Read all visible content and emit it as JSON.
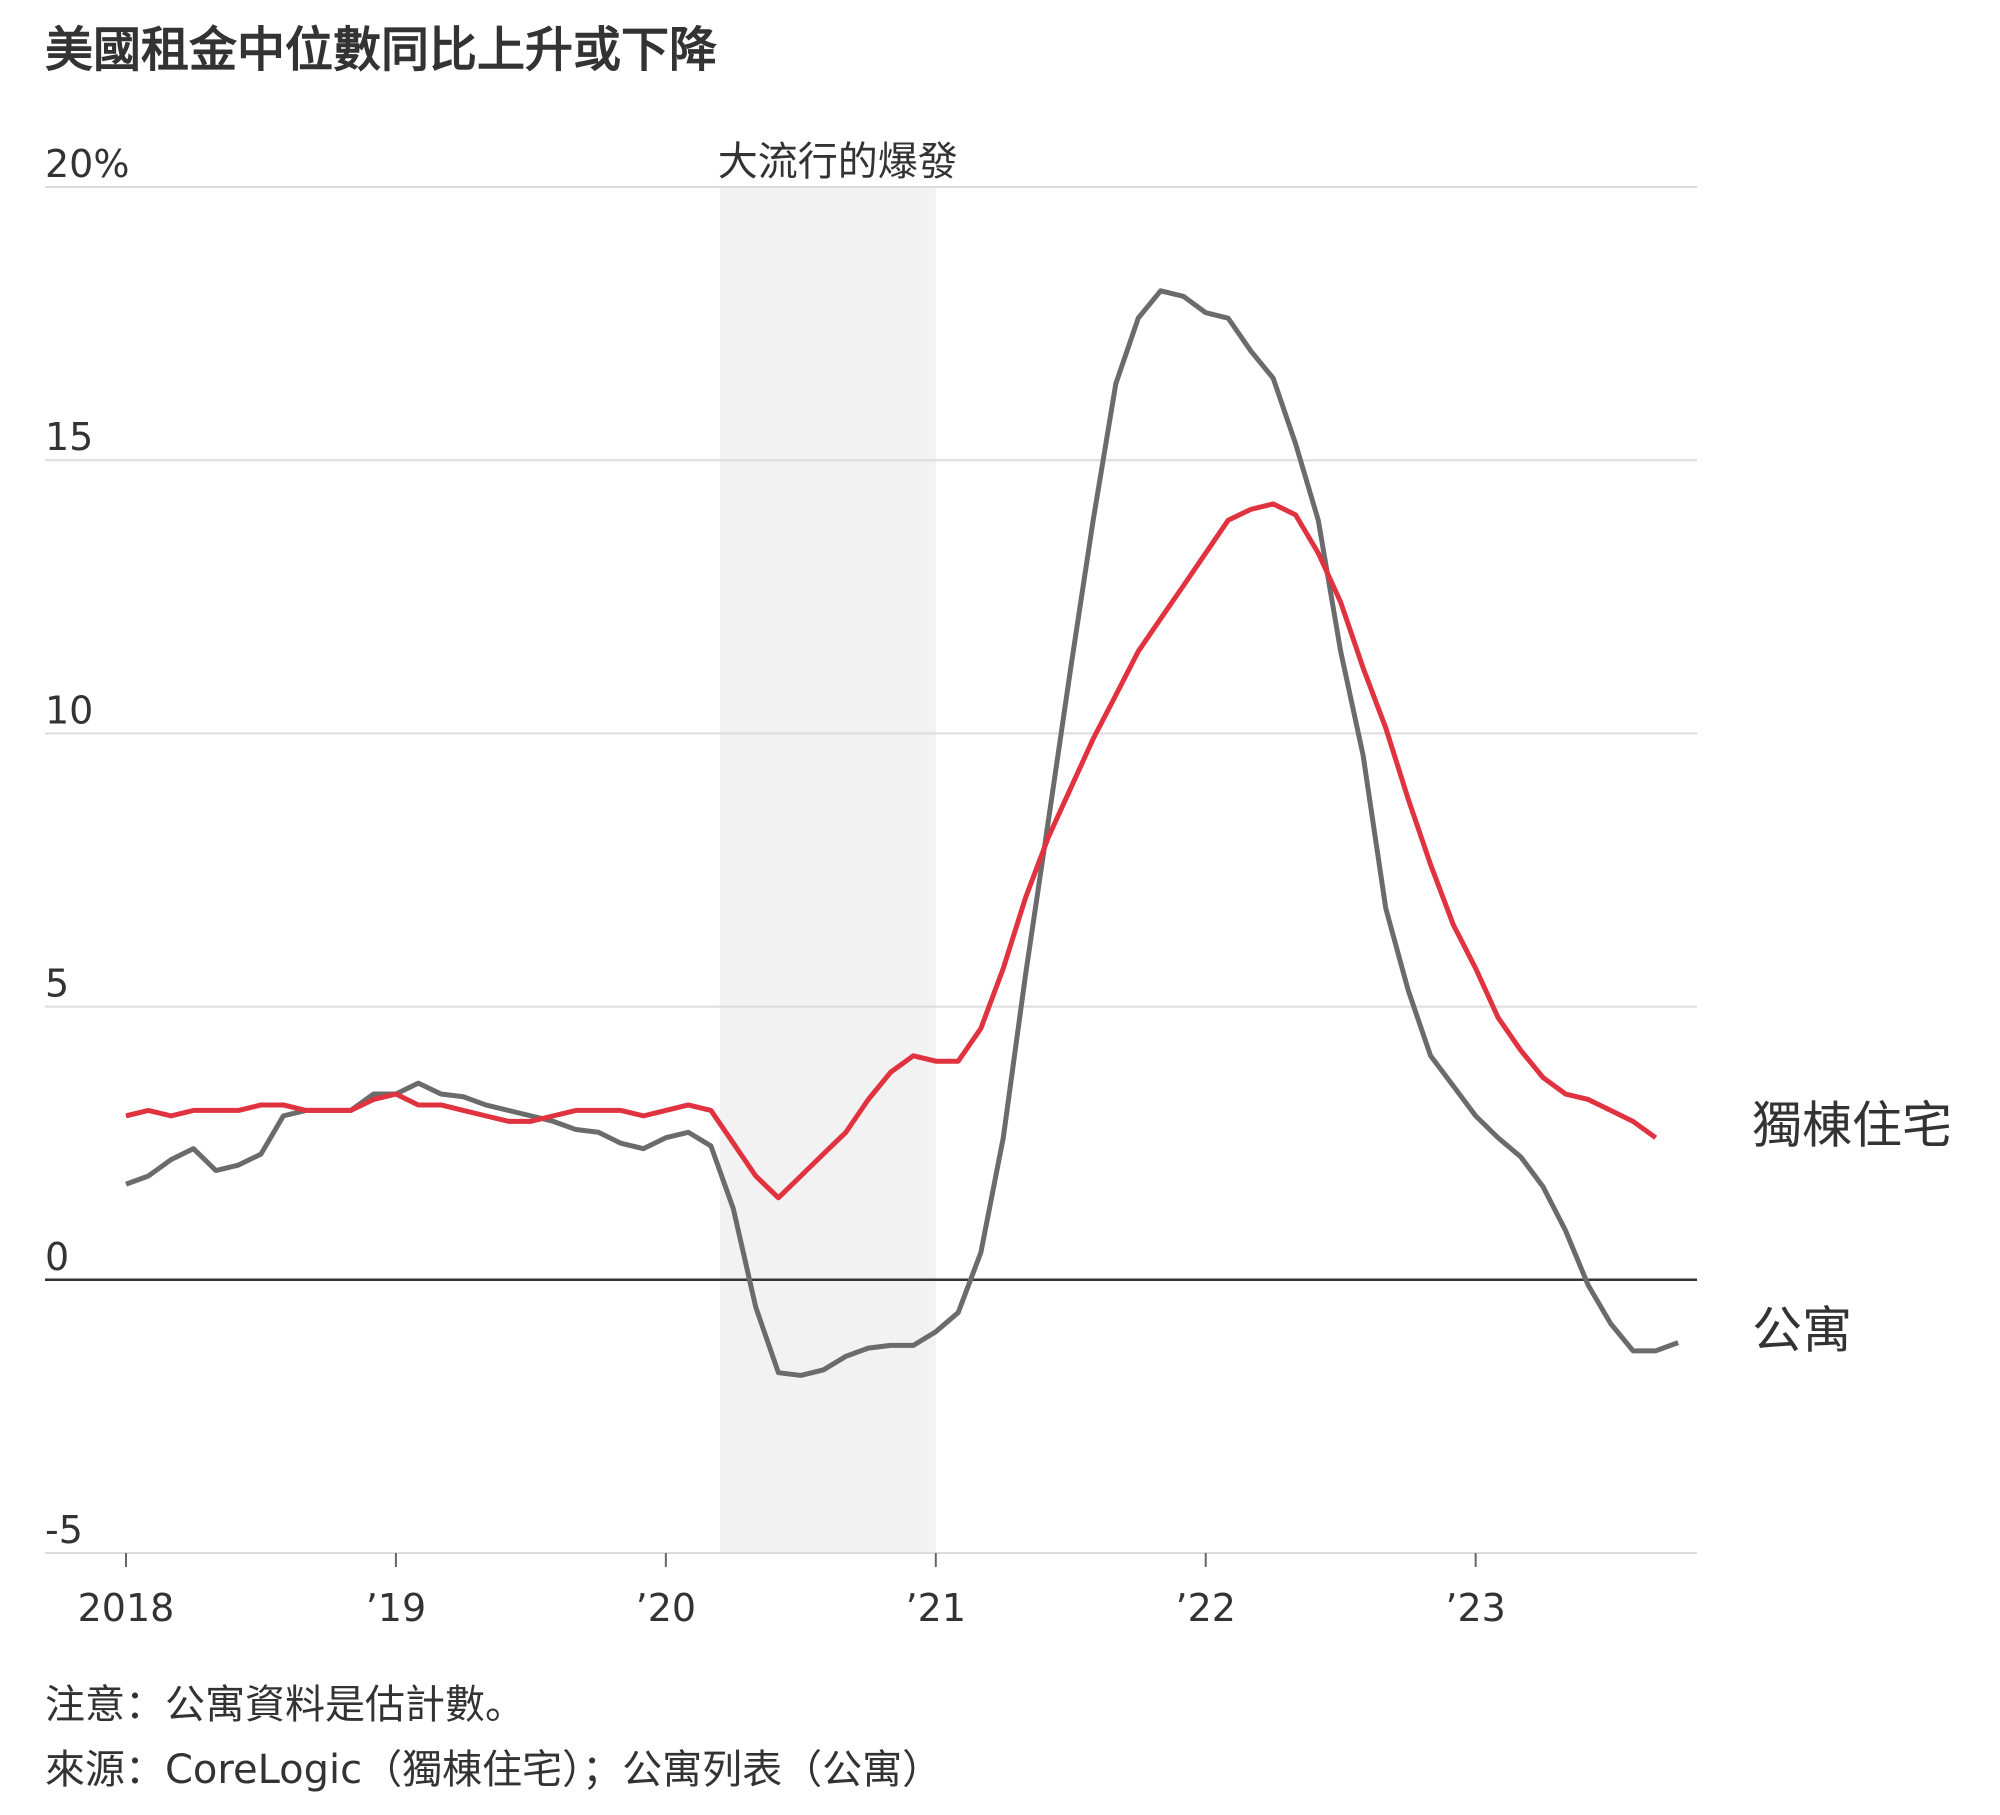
{
  "chart_data": {
    "type": "line",
    "title": "美國租金中位數同比上升或下降",
    "notes": [
      "注意：公寓資料是估計數。",
      "來源：CoreLogic（獨棟住宅）；公寓列表（公寓）"
    ],
    "x": [
      2018,
      2018.083,
      2018.167,
      2018.25,
      2018.333,
      2018.417,
      2018.5,
      2018.583,
      2018.667,
      2018.75,
      2018.833,
      2018.917,
      2019,
      2019.083,
      2019.167,
      2019.25,
      2019.333,
      2019.417,
      2019.5,
      2019.583,
      2019.667,
      2019.75,
      2019.833,
      2019.917,
      2020,
      2020.083,
      2020.167,
      2020.25,
      2020.333,
      2020.417,
      2020.5,
      2020.583,
      2020.667,
      2020.75,
      2020.833,
      2020.917,
      2021,
      2021.083,
      2021.167,
      2021.25,
      2021.333,
      2021.417,
      2021.5,
      2021.583,
      2021.667,
      2021.75,
      2021.833,
      2021.917,
      2022,
      2022.083,
      2022.167,
      2022.25,
      2022.333,
      2022.417,
      2022.5,
      2022.583,
      2022.667,
      2022.75,
      2022.833,
      2022.917,
      2023,
      2023.083,
      2023.167,
      2023.25,
      2023.333,
      2023.417,
      2023.5,
      2023.583,
      2023.667,
      2023.75
    ],
    "series": [
      {
        "name": "獨棟住宅",
        "color": "#e0323f",
        "values": [
          3.0,
          3.1,
          3.0,
          3.1,
          3.1,
          3.1,
          3.2,
          3.2,
          3.1,
          3.1,
          3.1,
          3.3,
          3.4,
          3.2,
          3.2,
          3.1,
          3.0,
          2.9,
          2.9,
          3.0,
          3.1,
          3.1,
          3.1,
          3.0,
          3.1,
          3.2,
          3.1,
          2.5,
          1.9,
          1.5,
          1.9,
          2.3,
          2.7,
          3.3,
          3.8,
          4.1,
          4.0,
          4.0,
          4.6,
          5.7,
          7.0,
          8.1,
          9.0,
          9.9,
          10.7,
          11.5,
          12.1,
          12.7,
          13.3,
          13.9,
          14.1,
          14.2,
          14.0,
          13.3,
          12.4,
          11.2,
          10.1,
          8.8,
          7.6,
          6.5,
          5.7,
          4.8,
          4.2,
          3.7,
          3.4,
          3.3,
          3.1,
          2.9,
          2.6,
          null
        ]
      },
      {
        "name": "公寓",
        "color": "#6b6b6b",
        "values": [
          1.75,
          1.9,
          2.2,
          2.4,
          2.0,
          2.1,
          2.3,
          3.0,
          3.1,
          3.1,
          3.1,
          3.4,
          3.4,
          3.6,
          3.4,
          3.35,
          3.2,
          3.1,
          3.0,
          2.9,
          2.75,
          2.7,
          2.5,
          2.4,
          2.6,
          2.7,
          2.45,
          1.3,
          -0.5,
          -1.7,
          -1.75,
          -1.65,
          -1.4,
          -1.25,
          -1.2,
          -1.2,
          -0.95,
          -0.6,
          0.5,
          2.6,
          5.6,
          8.4,
          11.2,
          13.9,
          16.4,
          17.6,
          18.1,
          18.0,
          17.7,
          17.6,
          17.0,
          16.5,
          15.3,
          13.9,
          11.5,
          9.6,
          6.8,
          5.3,
          4.1,
          3.55,
          3.0,
          2.6,
          2.25,
          1.7,
          0.9,
          -0.1,
          -0.8,
          -1.3,
          -1.3,
          -1.15
        ]
      }
    ],
    "annotations": [
      {
        "label": "大流行的爆發",
        "xrange": [
          2020.2,
          2021
        ],
        "color": "#f2f2f2"
      }
    ],
    "xlim": [
      2017.7,
      2023.82
    ],
    "ylim": [
      -5,
      20
    ],
    "xticks": [
      {
        "value": 2018,
        "label": "2018"
      },
      {
        "value": 2019,
        "label": "’19"
      },
      {
        "value": 2020,
        "label": "’20"
      },
      {
        "value": 2021,
        "label": "’21"
      },
      {
        "value": 2022,
        "label": "’22"
      },
      {
        "value": 2023,
        "label": "’23"
      }
    ],
    "yticks": [
      -5,
      0,
      5,
      10,
      15,
      {
        "value": 20,
        "label": "20%"
      }
    ],
    "grid": true
  }
}
